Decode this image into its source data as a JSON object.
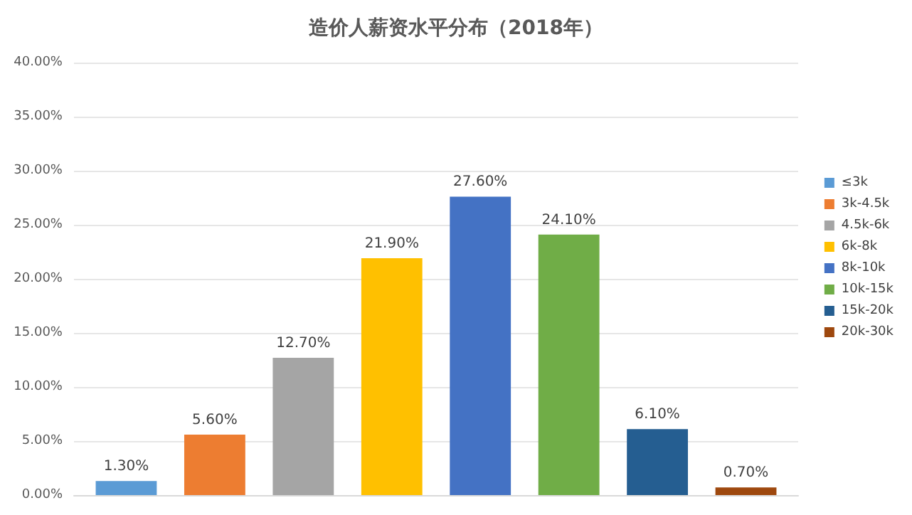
{
  "chart_data": {
    "type": "bar",
    "title": "造价人薪资水平分布（2018年）",
    "categories": [
      null
    ],
    "series": [
      {
        "name": "≤3k",
        "color": "#5b9bd5",
        "values": [
          1.3
        ],
        "value_labels": [
          "1.30%"
        ]
      },
      {
        "name": "3k-4.5k",
        "color": "#ed7d31",
        "values": [
          5.6
        ],
        "value_labels": [
          "5.60%"
        ]
      },
      {
        "name": "4.5k-6k",
        "color": "#a5a5a5",
        "values": [
          12.7
        ],
        "value_labels": [
          "12.70%"
        ]
      },
      {
        "name": "6k-8k",
        "color": "#ffc000",
        "values": [
          21.9
        ],
        "value_labels": [
          "21.90%"
        ]
      },
      {
        "name": "8k-10k",
        "color": "#4472c4",
        "values": [
          27.6
        ],
        "value_labels": [
          "27.60%"
        ]
      },
      {
        "name": "10k-15k",
        "color": "#70ad47",
        "values": [
          24.1
        ],
        "value_labels": [
          "24.10%"
        ]
      },
      {
        "name": "15k-20k",
        "color": "#255e91",
        "values": [
          6.1
        ],
        "value_labels": [
          "6.10%"
        ]
      },
      {
        "name": "20k-30k",
        "color": "#9e480e",
        "values": [
          0.7
        ],
        "value_labels": [
          "0.70%"
        ]
      }
    ],
    "ylim": [
      0,
      40
    ],
    "yticks": [
      {
        "value": 0,
        "label": "0.00%"
      },
      {
        "value": 5,
        "label": "5.00%"
      },
      {
        "value": 10,
        "label": "10.00%"
      },
      {
        "value": 15,
        "label": "15.00%"
      },
      {
        "value": 20,
        "label": "20.00%"
      },
      {
        "value": 25,
        "label": "25.00%"
      },
      {
        "value": 30,
        "label": "30.00%"
      },
      {
        "value": 35,
        "label": "35.00%"
      },
      {
        "value": 40,
        "label": "40.00%"
      }
    ],
    "grid": "y",
    "legend": "right"
  }
}
